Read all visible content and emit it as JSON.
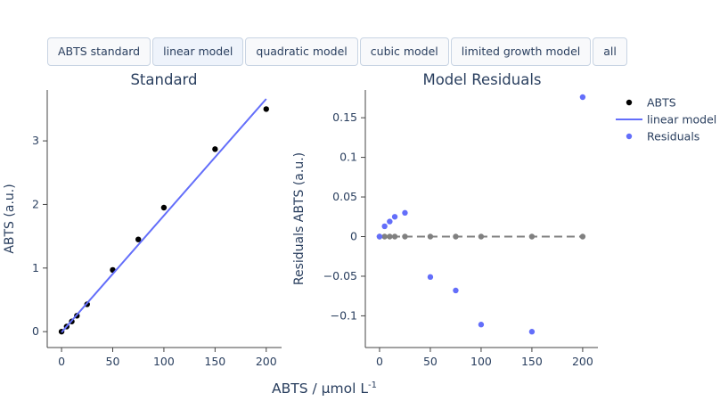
{
  "buttons": [
    {
      "label": "ABTS standard",
      "active": false
    },
    {
      "label": "linear model",
      "active": true
    },
    {
      "label": "quadratic model",
      "active": false
    },
    {
      "label": "cubic model",
      "active": false
    },
    {
      "label": "limited growth model",
      "active": false
    },
    {
      "label": "all",
      "active": false
    }
  ],
  "shared_xlabel": "ABTS / µmol L",
  "shared_xlabel_sup": "-1",
  "legend": [
    {
      "name": "ABTS",
      "symbol": "marker",
      "color": "#000000"
    },
    {
      "name": "linear model",
      "symbol": "line",
      "color": "#636efa"
    },
    {
      "name": "Residuals",
      "symbol": "marker",
      "color": "#636efa"
    }
  ],
  "chart_data": [
    {
      "type": "scatter",
      "title": "Standard",
      "ylabel": "ABTS (a.u.)",
      "xlim": [
        -14,
        215
      ],
      "ylim": [
        -0.25,
        3.8
      ],
      "xticks": [
        0,
        50,
        100,
        150,
        200
      ],
      "yticks": [
        0,
        1,
        2,
        3
      ],
      "series": [
        {
          "name": "ABTS",
          "kind": "markers",
          "color": "#000000",
          "x": [
            0,
            5,
            10,
            15,
            25,
            50,
            75,
            100,
            150,
            200
          ],
          "y": [
            0.0,
            0.08,
            0.16,
            0.25,
            0.43,
            0.97,
            1.45,
            1.95,
            2.87,
            3.5
          ]
        },
        {
          "name": "linear model",
          "kind": "line",
          "color": "#636efa",
          "x": [
            0,
            200
          ],
          "y": [
            -0.01,
            3.66
          ]
        }
      ]
    },
    {
      "type": "scatter",
      "title": "Model Residuals",
      "ylabel": "Residuals ABTS (a.u.)",
      "xlim": [
        -14,
        215
      ],
      "ylim": [
        -0.14,
        0.185
      ],
      "xticks": [
        0,
        50,
        100,
        150,
        200
      ],
      "yticks": [
        -0.1,
        -0.05,
        0,
        0.05,
        0.1,
        0.15
      ],
      "ytick_labels": [
        "−0.1",
        "−0.05",
        "0",
        "0.05",
        "0.1",
        "0.15"
      ],
      "series": [
        {
          "name": "zero",
          "kind": "dashed-markers",
          "color": "#808080",
          "x": [
            0,
            5,
            10,
            15,
            25,
            50,
            75,
            100,
            150,
            200
          ],
          "y": [
            0,
            0,
            0,
            0,
            0,
            0,
            0,
            0,
            0,
            0
          ]
        },
        {
          "name": "Residuals",
          "kind": "markers",
          "color": "#636efa",
          "x": [
            0,
            5,
            10,
            15,
            25,
            50,
            75,
            100,
            150,
            200
          ],
          "y": [
            0.0,
            0.013,
            0.019,
            0.025,
            0.03,
            -0.051,
            -0.068,
            -0.111,
            -0.12,
            0.176
          ]
        }
      ]
    }
  ]
}
